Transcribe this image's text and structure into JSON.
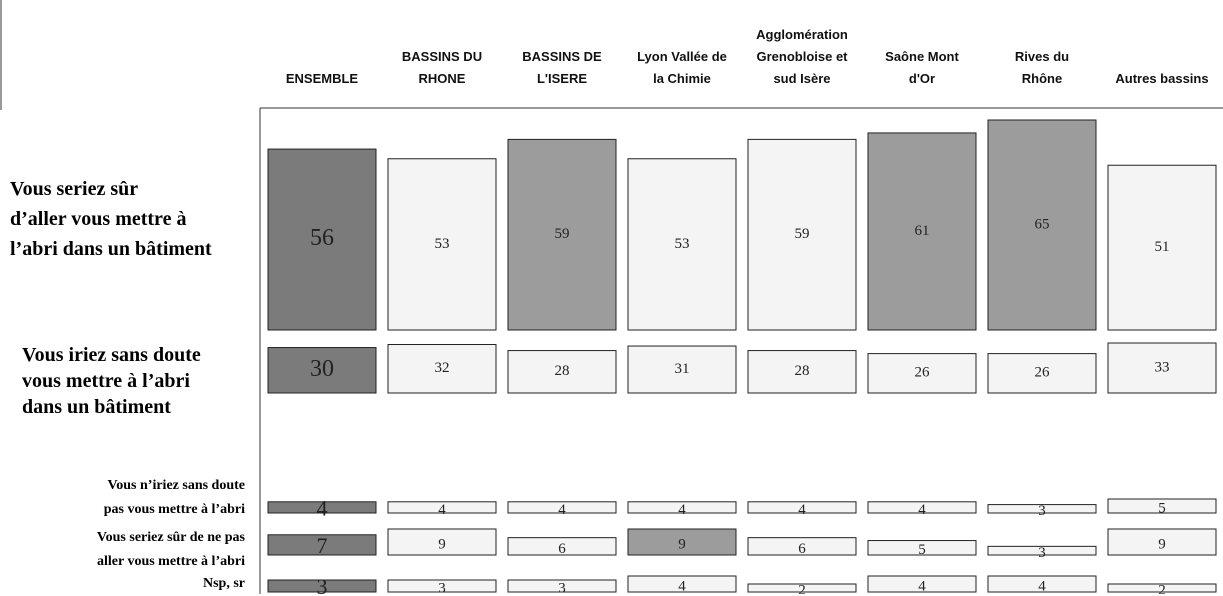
{
  "chart_data": {
    "type": "row-bar",
    "categories": [
      "ENSEMBLE",
      "BASSINS DU\nRHONE",
      "BASSINS DE\nL'ISERE",
      "Lyon Vallée de\nla Chimie",
      "Agglomération\nGrenobloise et\nsud Isère",
      "Saône Mont\nd'Or",
      "Rives du\nRhône",
      "Autres bassins"
    ],
    "series": [
      {
        "name": "Vous seriez sûr\nd’aller vous mettre à\nl’abri dans un bâtiment",
        "values": [
          56,
          53,
          59,
          53,
          59,
          61,
          65,
          51
        ],
        "colors": [
          "#7b7b7b",
          "#f4f4f4",
          "#9c9c9c",
          "#f4f4f4",
          "#f4f4f4",
          "#9c9c9c",
          "#9c9c9c",
          "#f4f4f4"
        ]
      },
      {
        "name": "Vous iriez sans doute\nvous mettre à l’abri\ndans un bâtiment",
        "values": [
          30,
          32,
          28,
          31,
          28,
          26,
          26,
          33
        ],
        "colors": [
          "#7b7b7b",
          "#f4f4f4",
          "#f4f4f4",
          "#f4f4f4",
          "#f4f4f4",
          "#f4f4f4",
          "#f4f4f4",
          "#f4f4f4"
        ]
      },
      {
        "name": "Vous n’iriez sans doute\npas vous mettre à l’abri",
        "values": [
          4,
          4,
          4,
          4,
          4,
          4,
          3,
          5
        ],
        "colors": [
          "#7b7b7b",
          "#f4f4f4",
          "#f4f4f4",
          "#f4f4f4",
          "#f4f4f4",
          "#f4f4f4",
          "#f4f4f4",
          "#f4f4f4"
        ]
      },
      {
        "name": "Vous seriez sûr de ne pas\naller vous mettre à l’abri",
        "values": [
          7,
          9,
          6,
          9,
          6,
          5,
          3,
          9
        ],
        "colors": [
          "#7b7b7b",
          "#f4f4f4",
          "#f4f4f4",
          "#9c9c9c",
          "#f4f4f4",
          "#f4f4f4",
          "#f4f4f4",
          "#f4f4f4"
        ]
      },
      {
        "name": "Nsp, sr",
        "values": [
          3,
          3,
          3,
          4,
          2,
          4,
          4,
          2
        ],
        "colors": [
          "#7b7b7b",
          "#f4f4f4",
          "#f4f4f4",
          "#f4f4f4",
          "#f4f4f4",
          "#f4f4f4",
          "#f4f4f4",
          "#f4f4f4"
        ]
      }
    ]
  }
}
